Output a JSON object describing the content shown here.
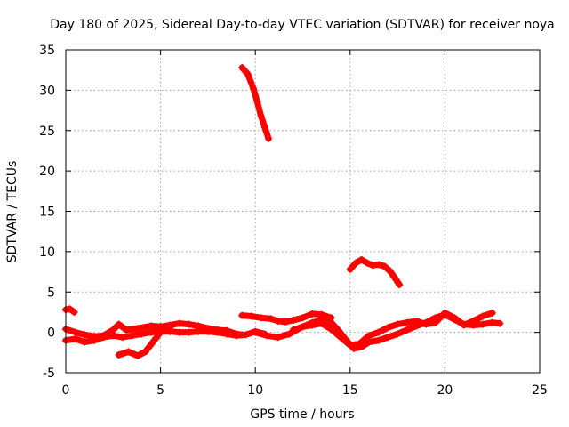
{
  "chart_data": {
    "type": "scatter",
    "title": "Day 180 of 2025, Sidereal Day-to-day VTEC variation (SDTVAR) for receiver noya",
    "xlabel": "GPS time / hours",
    "ylabel": "SDTVAR / TECUs",
    "xlim": [
      0,
      25
    ],
    "ylim": [
      -5,
      35
    ],
    "x_ticks": [
      0,
      5,
      10,
      15,
      20,
      25
    ],
    "y_ticks": [
      -5,
      0,
      5,
      10,
      15,
      20,
      25,
      30,
      35
    ],
    "grid": true,
    "marker": "+",
    "color": "#ff0000",
    "series": [
      {
        "name": "segment-1",
        "x": [
          0.0,
          0.2,
          0.45
        ],
        "y": [
          2.8,
          2.9,
          2.5
        ]
      },
      {
        "name": "segment-2",
        "x": [
          0.0,
          0.5,
          1.0,
          1.5,
          2.0,
          2.5,
          2.8,
          3.2,
          3.8,
          4.5,
          5.0,
          5.5,
          6.0,
          6.5,
          7.0,
          7.5,
          8.0,
          8.5,
          9.0,
          9.3
        ],
        "y": [
          0.4,
          0.0,
          -0.3,
          -0.5,
          -0.4,
          0.3,
          1.0,
          0.3,
          0.5,
          0.8,
          0.7,
          0.9,
          1.1,
          1.0,
          0.8,
          0.5,
          0.3,
          0.2,
          -0.2,
          -0.3
        ]
      },
      {
        "name": "segment-3",
        "x": [
          0.0,
          0.5,
          1.0,
          1.5,
          2.0,
          2.5,
          3.0,
          3.5,
          4.0,
          4.5,
          5.0,
          5.5,
          6.0,
          6.5,
          7.0,
          7.5,
          8.0,
          8.5,
          9.0,
          9.5,
          10.0,
          10.5
        ],
        "y": [
          -1.0,
          -0.8,
          -1.2,
          -1.0,
          -0.6,
          -0.4,
          -0.6,
          -0.4,
          -0.2,
          0.0,
          0.1,
          0.1,
          0.0,
          0.0,
          0.1,
          0.1,
          0.0,
          -0.2,
          -0.4,
          -0.3,
          0.1,
          -0.2
        ]
      },
      {
        "name": "segment-4",
        "x": [
          2.8,
          3.3,
          3.8,
          4.2,
          4.6,
          5.0,
          5.5
        ],
        "y": [
          -2.8,
          -2.4,
          -2.9,
          -2.4,
          -1.2,
          0.0,
          0.6
        ]
      },
      {
        "name": "segment-5",
        "x": [
          9.3,
          9.6,
          9.9,
          10.1,
          10.3,
          10.5,
          10.7
        ],
        "y": [
          32.8,
          32.0,
          30.2,
          28.6,
          26.8,
          25.4,
          24.0
        ]
      },
      {
        "name": "segment-6",
        "x": [
          9.3,
          9.8,
          10.3,
          10.8,
          11.2,
          11.6,
          12.0,
          12.5,
          13.0,
          13.5,
          14.0
        ],
        "y": [
          2.1,
          2.0,
          1.8,
          1.7,
          1.4,
          1.3,
          1.5,
          1.8,
          2.3,
          2.2,
          1.8
        ]
      },
      {
        "name": "segment-7",
        "x": [
          10.0,
          10.6,
          11.2,
          11.8,
          12.4,
          13.0,
          13.6,
          14.0,
          14.4,
          14.8,
          15.2,
          15.6,
          16.0,
          16.5,
          17.0,
          17.5,
          18.0,
          18.5,
          19.0,
          19.5,
          20.0,
          20.5,
          21.0,
          21.5,
          22.0,
          22.5,
          22.9
        ],
        "y": [
          0.0,
          -0.4,
          -0.6,
          -0.2,
          0.6,
          1.2,
          1.6,
          1.2,
          0.2,
          -1.0,
          -2.0,
          -1.8,
          -1.2,
          -1.0,
          -0.6,
          -0.2,
          0.3,
          0.8,
          1.2,
          1.8,
          2.2,
          1.6,
          1.0,
          0.9,
          1.0,
          1.2,
          1.1
        ]
      },
      {
        "name": "segment-8",
        "x": [
          12.0,
          12.5,
          13.0,
          13.5,
          14.0,
          14.5,
          15.0,
          15.5,
          16.0,
          16.5,
          17.0,
          17.5,
          18.0,
          18.5,
          19.0,
          19.5,
          20.0,
          20.5,
          21.0,
          21.5,
          22.0,
          22.5
        ],
        "y": [
          0.3,
          0.7,
          0.9,
          1.1,
          0.4,
          -0.6,
          -1.6,
          -1.4,
          -0.4,
          0.0,
          0.6,
          1.0,
          1.2,
          1.4,
          1.0,
          1.2,
          2.4,
          1.8,
          0.9,
          1.4,
          2.0,
          2.4
        ]
      },
      {
        "name": "segment-9",
        "x": [
          15.0,
          15.3,
          15.6,
          15.9,
          16.2,
          16.5,
          16.8,
          17.1,
          17.4,
          17.6
        ],
        "y": [
          7.8,
          8.6,
          9.0,
          8.6,
          8.3,
          8.4,
          8.2,
          7.6,
          6.6,
          5.9
        ]
      }
    ]
  }
}
